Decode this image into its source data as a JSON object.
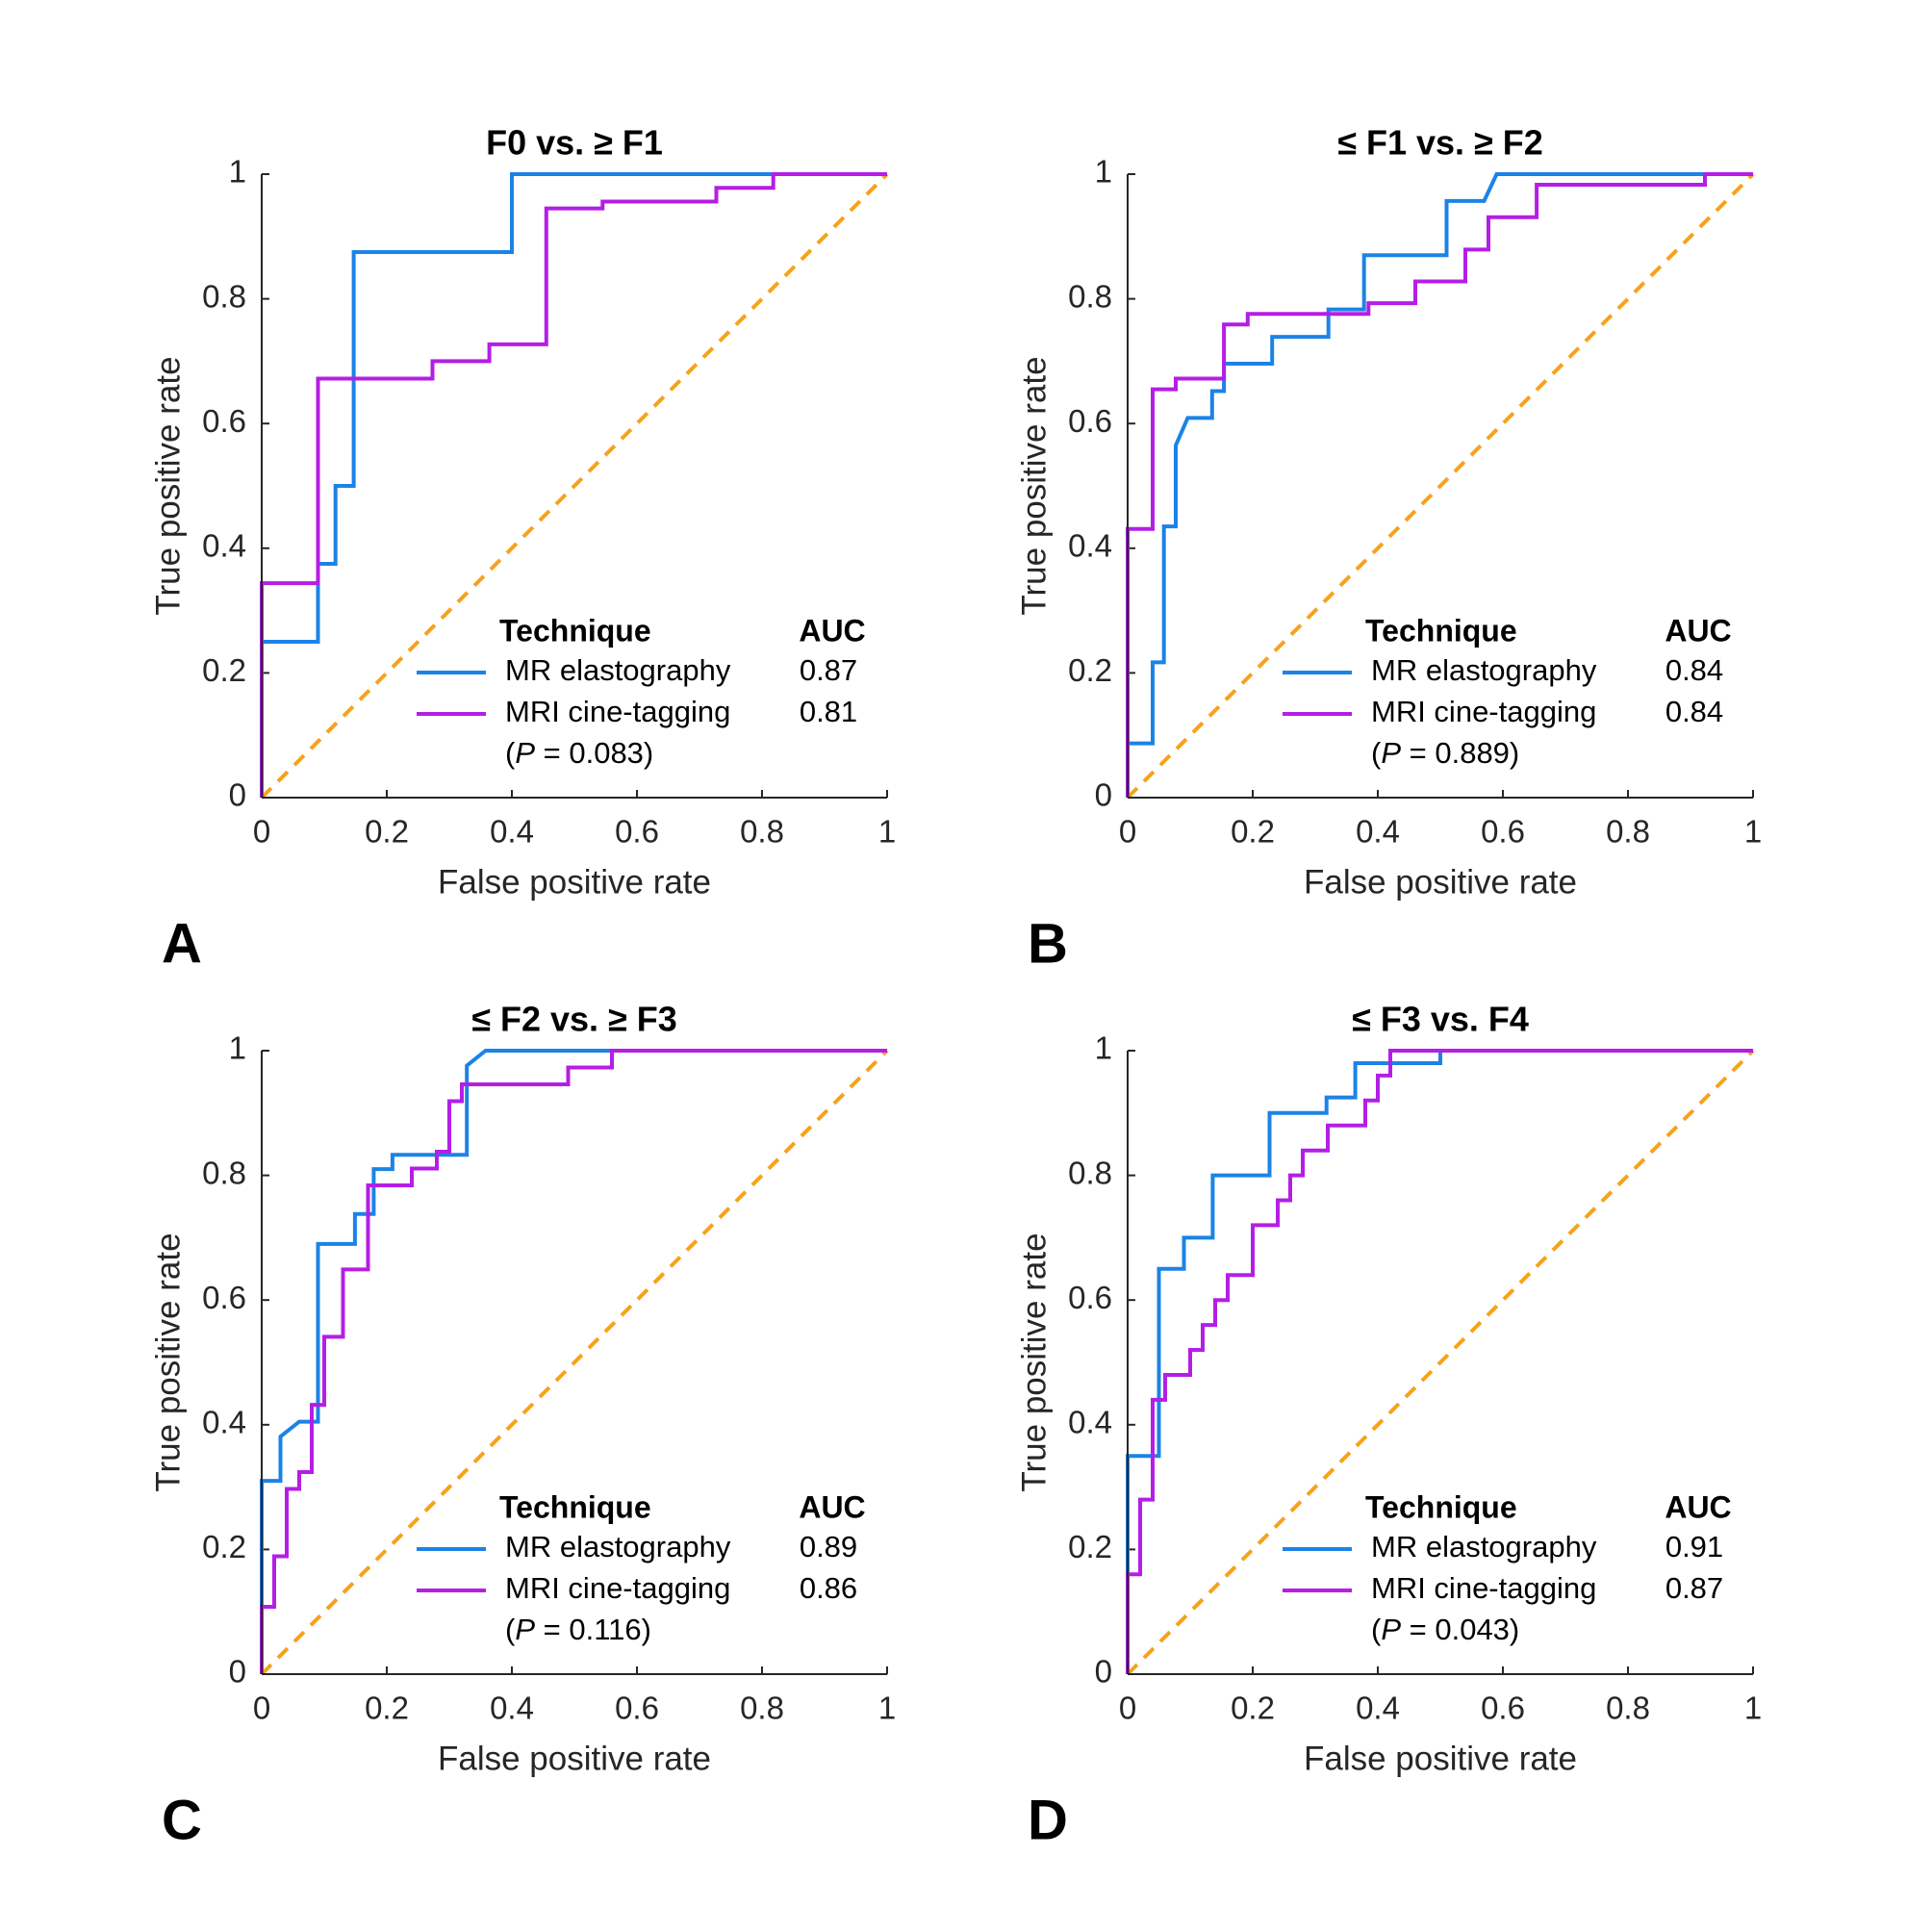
{
  "chart_data": [
    {
      "type": "line",
      "panel_label": "A",
      "title": "F0 vs. ≥ F1",
      "xlabel": "False positive rate",
      "ylabel": "True positive rate",
      "xlim": [
        0,
        1
      ],
      "ylim": [
        0,
        1
      ],
      "xticks": [
        0,
        0.2,
        0.4,
        0.6,
        0.8,
        1
      ],
      "yticks": [
        0,
        0.2,
        0.4,
        0.6,
        0.8,
        1
      ],
      "legend_header": [
        "Technique",
        "AUC"
      ],
      "p_note": [
        "(",
        "P",
        " = 0.083)"
      ],
      "reference_line": {
        "x": [
          0,
          1
        ],
        "y": [
          0,
          1
        ],
        "color": "#f7a21b",
        "dashed": true
      },
      "series": [
        {
          "name": "MR elastography",
          "color": "#1c83e6",
          "auc": 0.87,
          "x": [
            0,
            0,
            0.09,
            0.09,
            0.118,
            0.118,
            0.147,
            0.147,
            0.4,
            0.4,
            1
          ],
          "y": [
            0,
            0.25,
            0.25,
            0.375,
            0.375,
            0.5,
            0.5,
            0.875,
            0.875,
            1,
            1
          ]
        },
        {
          "name": "MRI cine-tagging",
          "color": "#b41ee6",
          "auc": 0.81,
          "x": [
            0,
            0,
            0.09,
            0.09,
            0.273,
            0.273,
            0.364,
            0.364,
            0.455,
            0.455,
            0.545,
            0.545,
            0.727,
            0.727,
            0.818,
            0.818,
            1
          ],
          "y": [
            0,
            0.344,
            0.344,
            0.672,
            0.672,
            0.7,
            0.7,
            0.727,
            0.727,
            0.945,
            0.945,
            0.956,
            0.956,
            0.978,
            0.978,
            1,
            1
          ]
        }
      ]
    },
    {
      "type": "line",
      "panel_label": "B",
      "title": "≤ F1 vs. ≥ F2",
      "xlabel": "False positive rate",
      "ylabel": "True positive rate",
      "xlim": [
        0,
        1
      ],
      "ylim": [
        0,
        1
      ],
      "xticks": [
        0,
        0.2,
        0.4,
        0.6,
        0.8,
        1
      ],
      "yticks": [
        0,
        0.2,
        0.4,
        0.6,
        0.8,
        1
      ],
      "legend_header": [
        "Technique",
        "AUC"
      ],
      "p_note": [
        "(",
        "P",
        " = 0.889)"
      ],
      "reference_line": {
        "x": [
          0,
          1
        ],
        "y": [
          0,
          1
        ],
        "color": "#f7a21b",
        "dashed": true
      },
      "series": [
        {
          "name": "MR elastography",
          "color": "#1c83e6",
          "auc": 0.84,
          "x": [
            0,
            0,
            0.04,
            0.04,
            0.058,
            0.058,
            0.077,
            0.077,
            0.096,
            0.135,
            0.135,
            0.154,
            0.154,
            0.231,
            0.231,
            0.321,
            0.321,
            0.378,
            0.378,
            0.51,
            0.51,
            0.57,
            0.59,
            1
          ],
          "y": [
            0,
            0.087,
            0.087,
            0.217,
            0.217,
            0.435,
            0.435,
            0.565,
            0.609,
            0.609,
            0.652,
            0.652,
            0.696,
            0.696,
            0.739,
            0.739,
            0.783,
            0.783,
            0.87,
            0.87,
            0.957,
            0.957,
            1,
            1
          ]
        },
        {
          "name": "MRI cine-tagging",
          "color": "#b41ee6",
          "auc": 0.84,
          "x": [
            0,
            0,
            0.04,
            0.04,
            0.077,
            0.077,
            0.154,
            0.154,
            0.192,
            0.192,
            0.385,
            0.385,
            0.46,
            0.46,
            0.54,
            0.54,
            0.577,
            0.577,
            0.654,
            0.654,
            0.923,
            0.923,
            1
          ],
          "y": [
            0,
            0.431,
            0.431,
            0.655,
            0.655,
            0.672,
            0.672,
            0.759,
            0.759,
            0.776,
            0.776,
            0.793,
            0.793,
            0.828,
            0.828,
            0.879,
            0.879,
            0.931,
            0.931,
            0.983,
            0.983,
            1,
            1
          ]
        }
      ]
    },
    {
      "type": "line",
      "panel_label": "C",
      "title": "≤ F2 vs. ≥ F3",
      "xlabel": "False positive rate",
      "ylabel": "True positive rate",
      "xlim": [
        0,
        1
      ],
      "ylim": [
        0,
        1
      ],
      "xticks": [
        0,
        0.2,
        0.4,
        0.6,
        0.8,
        1
      ],
      "yticks": [
        0,
        0.2,
        0.4,
        0.6,
        0.8,
        1
      ],
      "legend_header": [
        "Technique",
        "AUC"
      ],
      "p_note": [
        "(",
        "P",
        " = 0.116)"
      ],
      "reference_line": {
        "x": [
          0,
          1
        ],
        "y": [
          0,
          1
        ],
        "color": "#f7a21b",
        "dashed": true
      },
      "series": [
        {
          "name": "MR elastography",
          "color": "#1c83e6",
          "auc": 0.89,
          "x": [
            0,
            0,
            0.03,
            0.03,
            0.06,
            0.09,
            0.09,
            0.149,
            0.149,
            0.179,
            0.179,
            0.209,
            0.209,
            0.328,
            0.328,
            0.358,
            1
          ],
          "y": [
            0,
            0.31,
            0.31,
            0.381,
            0.405,
            0.405,
            0.69,
            0.69,
            0.738,
            0.738,
            0.81,
            0.81,
            0.833,
            0.833,
            0.976,
            1,
            1
          ]
        },
        {
          "name": "MRI cine-tagging",
          "color": "#b41ee6",
          "auc": 0.86,
          "x": [
            0,
            0,
            0.02,
            0.02,
            0.04,
            0.04,
            0.06,
            0.06,
            0.08,
            0.08,
            0.1,
            0.1,
            0.13,
            0.13,
            0.17,
            0.17,
            0.24,
            0.24,
            0.28,
            0.28,
            0.3,
            0.3,
            0.32,
            0.32,
            0.49,
            0.49,
            0.56,
            0.56,
            1
          ],
          "y": [
            0,
            0.108,
            0.108,
            0.189,
            0.189,
            0.297,
            0.297,
            0.324,
            0.324,
            0.432,
            0.432,
            0.541,
            0.541,
            0.649,
            0.649,
            0.784,
            0.784,
            0.811,
            0.811,
            0.838,
            0.838,
            0.919,
            0.919,
            0.946,
            0.946,
            0.973,
            0.973,
            1,
            1
          ]
        }
      ]
    },
    {
      "type": "line",
      "panel_label": "D",
      "title": "≤ F3 vs. F4",
      "xlabel": "False positive rate",
      "ylabel": "True positive rate",
      "xlim": [
        0,
        1
      ],
      "ylim": [
        0,
        1
      ],
      "xticks": [
        0,
        0.2,
        0.4,
        0.6,
        0.8,
        1
      ],
      "yticks": [
        0,
        0.2,
        0.4,
        0.6,
        0.8,
        1
      ],
      "legend_header": [
        "Technique",
        "AUC"
      ],
      "p_note": [
        "(",
        "P",
        " = 0.043)"
      ],
      "reference_line": {
        "x": [
          0,
          1
        ],
        "y": [
          0,
          1
        ],
        "color": "#f7a21b",
        "dashed": true
      },
      "series": [
        {
          "name": "MR elastography",
          "color": "#1c83e6",
          "auc": 0.91,
          "x": [
            0,
            0,
            0.05,
            0.05,
            0.09,
            0.09,
            0.136,
            0.136,
            0.227,
            0.227,
            0.318,
            0.318,
            0.364,
            0.364,
            0.5,
            0.5,
            1
          ],
          "y": [
            0,
            0.35,
            0.35,
            0.65,
            0.65,
            0.7,
            0.7,
            0.8,
            0.8,
            0.9,
            0.9,
            0.925,
            0.925,
            0.98,
            0.98,
            1,
            1
          ]
        },
        {
          "name": "MRI cine-tagging",
          "color": "#b41ee6",
          "auc": 0.87,
          "x": [
            0,
            0,
            0.02,
            0.02,
            0.04,
            0.04,
            0.06,
            0.06,
            0.1,
            0.1,
            0.12,
            0.12,
            0.14,
            0.14,
            0.16,
            0.16,
            0.2,
            0.2,
            0.24,
            0.24,
            0.26,
            0.26,
            0.28,
            0.28,
            0.32,
            0.32,
            0.38,
            0.38,
            0.4,
            0.4,
            0.42,
            0.42,
            1
          ],
          "y": [
            0,
            0.16,
            0.16,
            0.28,
            0.28,
            0.44,
            0.44,
            0.48,
            0.48,
            0.52,
            0.52,
            0.56,
            0.56,
            0.6,
            0.6,
            0.64,
            0.64,
            0.72,
            0.72,
            0.76,
            0.76,
            0.8,
            0.8,
            0.84,
            0.84,
            0.88,
            0.88,
            0.92,
            0.92,
            0.96,
            0.96,
            1,
            1
          ]
        }
      ]
    }
  ]
}
